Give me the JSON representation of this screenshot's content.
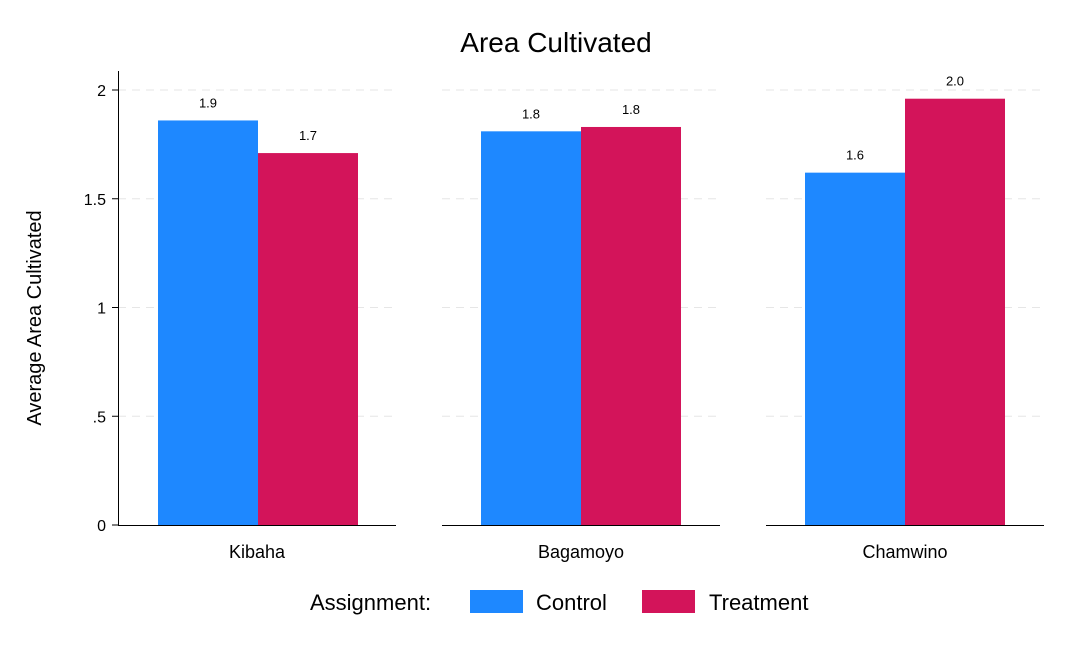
{
  "chart_data": {
    "type": "bar",
    "title": "Area Cultivated",
    "xlabel": "",
    "ylabel": "Average Area Cultivated",
    "ylim": [
      0,
      2.09
    ],
    "yticks": [
      {
        "value": 0,
        "label": "0"
      },
      {
        "value": 0.5,
        "label": ".5"
      },
      {
        "value": 1,
        "label": "1"
      },
      {
        "value": 1.5,
        "label": "1.5"
      },
      {
        "value": 2,
        "label": "2"
      }
    ],
    "grid": true,
    "categories": [
      "Kibaha",
      "Bagamoyo",
      "Chamwino"
    ],
    "series": [
      {
        "name": "Control",
        "color": "#1E88FF",
        "values": [
          1.86,
          1.81,
          1.62
        ],
        "labels": [
          "1.9",
          "1.8",
          "1.6"
        ]
      },
      {
        "name": "Treatment",
        "color": "#D3145A",
        "values": [
          1.71,
          1.83,
          1.96
        ],
        "labels": [
          "1.7",
          "1.8",
          "2.0"
        ]
      }
    ],
    "legend": {
      "title": "Assignment:",
      "position": "bottom"
    }
  }
}
